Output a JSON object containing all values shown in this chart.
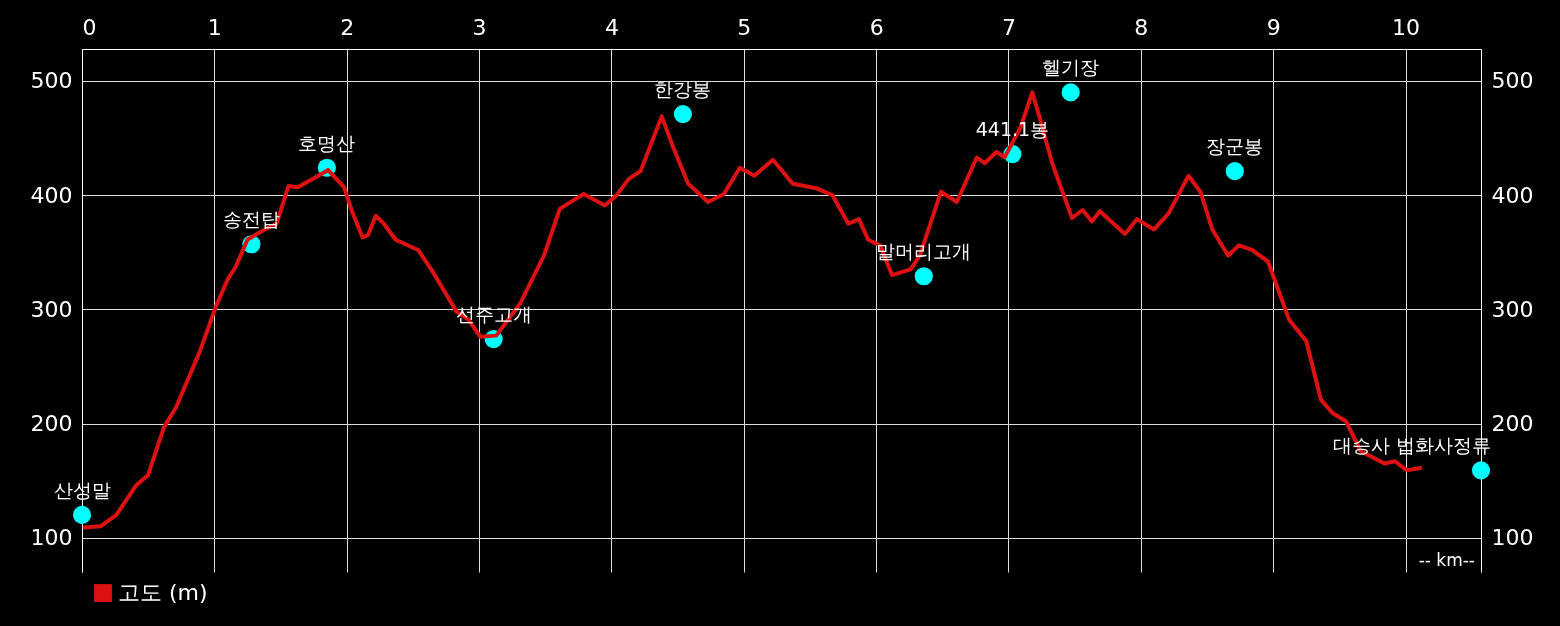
{
  "chart_data": {
    "type": "line",
    "xlabel": "-- km--",
    "xlim": [
      0,
      10.57
    ],
    "xticks": [
      0,
      1,
      2,
      3,
      4,
      5,
      6,
      7,
      8,
      9,
      10
    ],
    "ylim": [
      70,
      528
    ],
    "yticks": [
      100,
      200,
      300,
      400,
      500
    ],
    "y2lim": [
      70,
      528
    ],
    "y2ticks": [
      100,
      200,
      300,
      400,
      500
    ],
    "grid": true,
    "legend": "bottom left",
    "series": [
      {
        "name": "고도 (m)",
        "type": "line",
        "color": "#dd1111",
        "marker": "none",
        "line_style": "solid",
        "x": [
          0.02,
          0.14,
          0.26,
          0.41,
          0.5,
          0.62,
          0.71,
          0.89,
          1.01,
          1.1,
          1.16,
          1.25,
          1.38,
          1.47,
          1.56,
          1.63,
          1.74,
          1.86,
          1.98,
          2.04,
          2.12,
          2.16,
          2.22,
          2.28,
          2.37,
          2.54,
          2.65,
          2.83,
          2.92,
          3.01,
          3.13,
          3.31,
          3.49,
          3.61,
          3.79,
          3.95,
          4.04,
          4.13,
          4.22,
          4.38,
          4.47,
          4.58,
          4.73,
          4.85,
          4.97,
          5.08,
          5.22,
          5.37,
          5.55,
          5.67,
          5.79,
          5.87,
          5.94,
          6.03,
          6.12,
          6.26,
          6.33,
          6.49,
          6.61,
          6.76,
          6.82,
          6.91,
          6.97,
          7.09,
          7.18,
          7.24,
          7.33,
          7.48,
          7.56,
          7.63,
          7.69,
          7.88,
          7.97,
          8.1,
          8.21,
          8.36,
          8.45,
          8.54,
          8.66,
          8.74,
          8.84,
          8.96,
          9.12,
          9.25,
          9.36,
          9.45,
          9.55,
          9.66,
          9.84,
          9.92,
          10.01,
          10.11
        ],
        "values": [
          109,
          110,
          120,
          146,
          155,
          197,
          214,
          263,
          302,
          326,
          337,
          361,
          370,
          375,
          408,
          407,
          414,
          422,
          407,
          386,
          363,
          365,
          382,
          375,
          361,
          352,
          333,
          298,
          291,
          276,
          277,
          305,
          347,
          388,
          401,
          391,
          400,
          414,
          421,
          469,
          441,
          410,
          394,
          401,
          424,
          417,
          431,
          410,
          406,
          400,
          375,
          379,
          361,
          356,
          330,
          335,
          347,
          403,
          394,
          433,
          428,
          438,
          433,
          459,
          490,
          466,
          428,
          380,
          387,
          377,
          386,
          366,
          379,
          370,
          384,
          417,
          403,
          370,
          347,
          356,
          352,
          342,
          291,
          272,
          221,
          209,
          202,
          176,
          165,
          167,
          159,
          161
        ]
      },
      {
        "type": "scatter",
        "color": "#00ffff",
        "marker": "circle",
        "x": [
          0,
          1.28,
          1.85,
          3.11,
          4.54,
          6.36,
          7.03,
          7.47,
          8.71,
          10.57
        ],
        "values": [
          120,
          357,
          424,
          274,
          471,
          329,
          436,
          490,
          421,
          159
        ]
      }
    ],
    "annotations": [
      {
        "text": "산성말",
        "x": 0,
        "y": 120
      },
      {
        "text": "송전탑",
        "x": 1.28,
        "y": 357
      },
      {
        "text": "호명산",
        "x": 1.85,
        "y": 424
      },
      {
        "text": "선주고개",
        "x": 3.11,
        "y": 274
      },
      {
        "text": "한강봉",
        "x": 4.54,
        "y": 471
      },
      {
        "text": "말머리고개",
        "x": 6.36,
        "y": 329
      },
      {
        "text": "441.1봉",
        "x": 7.03,
        "y": 436
      },
      {
        "text": "헬기장",
        "x": 7.47,
        "y": 490
      },
      {
        "text": "장군봉",
        "x": 8.71,
        "y": 421
      },
      {
        "text": "대승사 법화사정류",
        "x": 10.57,
        "y": 159
      }
    ]
  }
}
